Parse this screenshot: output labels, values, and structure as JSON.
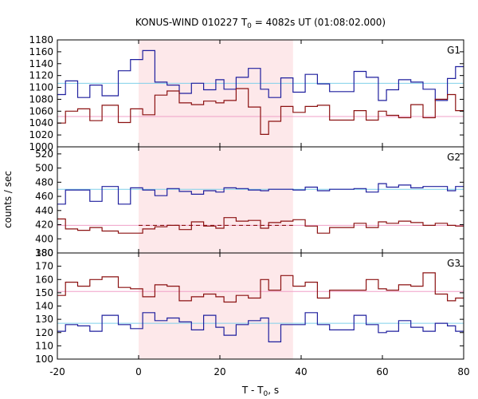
{
  "chart_data": {
    "type": "line",
    "title": {
      "prefix": "KONUS-WIND 010227 T",
      "sub": "0",
      "suffix": " = 4082s UT (01:08:02.000)"
    },
    "xlabel": {
      "prefix": "T - T",
      "sub": "0",
      "suffix": ", s"
    },
    "ylabel": "counts / sec",
    "xlim": [
      -20,
      80
    ],
    "xticks": [
      -20,
      0,
      20,
      40,
      60,
      80
    ],
    "highlight": {
      "x0": 0,
      "x1": 38,
      "color": "#fde8ea"
    },
    "colors": {
      "blue": "#1f1f9e",
      "red": "#8b1111",
      "cyan": "#7fd0ea",
      "pink": "#f0a0c8"
    },
    "panels": [
      {
        "label": "G1",
        "ylim": [
          1000,
          1180
        ],
        "yticks": [
          1000,
          1020,
          1040,
          1060,
          1080,
          1100,
          1120,
          1140,
          1160,
          1180
        ],
        "background": {
          "cyan": 1107,
          "pink": 1051
        },
        "series": [
          {
            "color": "blue",
            "x": [
              -20,
              -18,
              -15,
              -12,
              -9,
              -5,
              -2,
              1,
              4,
              7,
              10,
              13,
              16,
              19,
              21,
              24,
              27,
              30,
              32,
              35,
              38,
              41,
              44,
              47,
              53,
              56,
              59,
              61,
              64,
              67,
              70,
              73,
              76,
              78,
              80
            ],
            "y": [
              1088,
              1111,
              1083,
              1104,
              1086,
              1128,
              1147,
              1162,
              1109,
              1104,
              1090,
              1107,
              1096,
              1113,
              1097,
              1117,
              1132,
              1097,
              1083,
              1116,
              1092,
              1122,
              1106,
              1093,
              1127,
              1117,
              1078,
              1096,
              1113,
              1109,
              1097,
              1078,
              1115,
              1135,
              1139
            ]
          },
          {
            "color": "red",
            "x": [
              -20,
              -18,
              -15,
              -12,
              -9,
              -5,
              -2,
              1,
              4,
              7,
              10,
              13,
              16,
              19,
              21,
              24,
              27,
              30,
              32,
              35,
              38,
              41,
              44,
              47,
              53,
              56,
              59,
              61,
              64,
              67,
              70,
              73,
              76,
              78,
              80
            ],
            "y": [
              1040,
              1060,
              1064,
              1044,
              1070,
              1041,
              1064,
              1054,
              1087,
              1094,
              1074,
              1071,
              1077,
              1074,
              1078,
              1098,
              1067,
              1021,
              1043,
              1068,
              1058,
              1068,
              1070,
              1045,
              1061,
              1045,
              1060,
              1053,
              1049,
              1071,
              1049,
              1080,
              1088,
              1061,
              1059
            ]
          }
        ]
      },
      {
        "label": "G2",
        "ylim": [
          380,
          530
        ],
        "yticks": [
          380,
          400,
          420,
          440,
          460,
          480,
          500,
          520
        ],
        "background": {
          "cyan": 470,
          "pink": 419
        },
        "series": [
          {
            "color": "blue",
            "x": [
              -20,
              -18,
              -15,
              -12,
              -9,
              -5,
              -2,
              1,
              4,
              7,
              10,
              13,
              16,
              19,
              21,
              24,
              27,
              30,
              32,
              35,
              38,
              41,
              44,
              47,
              53,
              56,
              59,
              61,
              64,
              67,
              70,
              73,
              76,
              78,
              80
            ],
            "y": [
              449,
              469,
              469,
              453,
              474,
              449,
              472,
              469,
              461,
              471,
              467,
              463,
              468,
              466,
              472,
              471,
              469,
              468,
              470,
              470,
              469,
              473,
              468,
              470,
              471,
              466,
              478,
              473,
              476,
              472,
              474,
              474,
              468,
              474,
              476
            ]
          },
          {
            "color": "red",
            "x": [
              -20,
              -18,
              -15,
              -12,
              -9,
              -5,
              -2,
              1,
              4,
              7,
              10,
              13,
              16,
              19,
              21,
              24,
              27,
              30,
              32,
              35,
              38,
              41,
              44,
              47,
              53,
              56,
              59,
              61,
              64,
              67,
              70,
              73,
              76,
              78,
              80
            ],
            "y": [
              428,
              414,
              412,
              416,
              411,
              408,
              408,
              414,
              417,
              419,
              413,
              424,
              418,
              415,
              430,
              425,
              426,
              415,
              423,
              425,
              427,
              418,
              408,
              416,
              422,
              416,
              424,
              422,
              425,
              423,
              419,
              422,
              419,
              418,
              419
            ]
          }
        ]
      },
      {
        "label": "G3",
        "ylim": [
          100,
          180
        ],
        "yticks": [
          100,
          110,
          120,
          130,
          140,
          150,
          160,
          170,
          180
        ],
        "background": {
          "cyan": 127,
          "pink": 151
        },
        "series": [
          {
            "color": "blue",
            "x": [
              -20,
              -18,
              -15,
              -12,
              -9,
              -5,
              -2,
              1,
              4,
              7,
              10,
              13,
              16,
              19,
              21,
              24,
              27,
              30,
              32,
              35,
              38,
              41,
              44,
              47,
              53,
              56,
              59,
              61,
              64,
              67,
              70,
              73,
              76,
              78,
              80
            ],
            "y": [
              121,
              126,
              125,
              121,
              133,
              126,
              123,
              135,
              129,
              131,
              128,
              122,
              133,
              124,
              118,
              126,
              129,
              131,
              113,
              126,
              126,
              135,
              126,
              122,
              133,
              126,
              120,
              121,
              129,
              124,
              121,
              127,
              125,
              121,
              127
            ]
          },
          {
            "color": "red",
            "x": [
              -20,
              -18,
              -15,
              -12,
              -9,
              -5,
              -2,
              1,
              4,
              7,
              10,
              13,
              16,
              19,
              21,
              24,
              27,
              30,
              32,
              35,
              38,
              41,
              44,
              47,
              53,
              56,
              59,
              61,
              64,
              67,
              70,
              73,
              76,
              78,
              80
            ],
            "y": [
              148,
              158,
              155,
              160,
              162,
              154,
              153,
              147,
              156,
              155,
              144,
              147,
              149,
              147,
              143,
              148,
              146,
              160,
              152,
              163,
              155,
              158,
              146,
              152,
              152,
              160,
              153,
              152,
              156,
              155,
              165,
              149,
              144,
              146,
              150
            ]
          }
        ]
      }
    ]
  }
}
